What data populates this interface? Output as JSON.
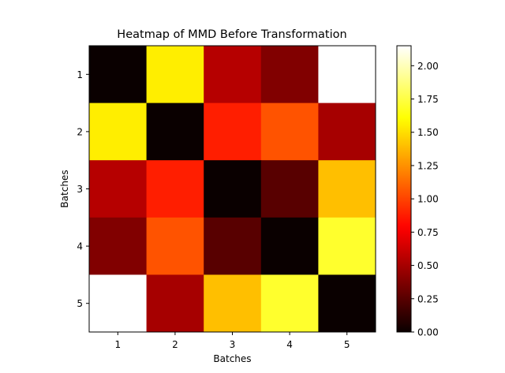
{
  "chart_data": {
    "type": "heatmap",
    "title": "Heatmap of MMD Before Transformation",
    "xlabel": "Batches",
    "ylabel": "Batches",
    "x_categories": [
      "1",
      "2",
      "3",
      "4",
      "5"
    ],
    "y_categories": [
      "1",
      "2",
      "3",
      "4",
      "5"
    ],
    "values": [
      [
        0.0,
        1.55,
        0.55,
        0.38,
        2.15
      ],
      [
        1.55,
        0.0,
        0.88,
        1.05,
        0.5
      ],
      [
        0.55,
        0.88,
        0.0,
        0.25,
        1.4
      ],
      [
        0.38,
        1.05,
        0.25,
        0.0,
        1.7
      ],
      [
        2.15,
        0.5,
        1.4,
        1.7,
        0.0
      ]
    ],
    "colormap": "hot",
    "colorbar": {
      "range": [
        0,
        2.15
      ],
      "ticks": [
        0.0,
        0.25,
        0.5,
        0.75,
        1.0,
        1.25,
        1.5,
        1.75,
        2.0
      ],
      "tick_labels": [
        "0.00",
        "0.25",
        "0.50",
        "0.75",
        "1.00",
        "1.25",
        "1.50",
        "1.75",
        "2.00"
      ]
    }
  }
}
